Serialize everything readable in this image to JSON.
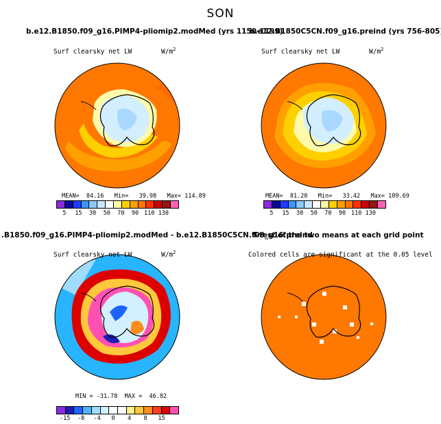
{
  "season": "SON",
  "panels": [
    {
      "title": "b.e12.B1850.f09_g16.PIMP4-pliomip2.modMed (yrs 1150-1199)",
      "subtitle": "Surf clearsky net LW",
      "units": "W/m",
      "units_exp": "2",
      "stats": "MEAN=  84.16   Min=   39.98   Max= 114.89",
      "colorbar": {
        "ticks": [
          "5",
          "15",
          "30",
          "50",
          "70",
          "90",
          "110",
          "130"
        ],
        "colors": [
          "#8c2be2",
          "#0a0a96",
          "#1e3cff",
          "#3c96ff",
          "#8cc8ff",
          "#c8e6ff",
          "#ffffff",
          "#fffaaa",
          "#ffd000",
          "#ffa000",
          "#ff7800",
          "#ff3200",
          "#c80000",
          "#961414",
          "#ff64b4"
        ]
      }
    },
    {
      "title": "b.e12.B1850C5CN.f09_g16.preind (yrs 756-805)",
      "subtitle": "Surf clearsky net LW",
      "units": "W/m",
      "units_exp": "2",
      "stats": "MEAN=  81.20   Min=   33.42   Max= 109.69",
      "colorbar": {
        "ticks": [
          "5",
          "15",
          "30",
          "50",
          "70",
          "90",
          "110",
          "130"
        ],
        "colors": [
          "#8c2be2",
          "#0a0a96",
          "#1e3cff",
          "#3c96ff",
          "#8cc8ff",
          "#c8e6ff",
          "#ffffff",
          "#fffaaa",
          "#ffd000",
          "#ffa000",
          "#ff7800",
          "#ff3200",
          "#c80000",
          "#961414",
          "#ff64b4"
        ]
      }
    },
    {
      "title": ".B1850.f09_g16.PIMP4-pliomip2.modMed - b.e12.B1850C5CN.f09_g16.preind",
      "subtitle": "Surf clearsky net LW",
      "units": "W/m",
      "units_exp": "2",
      "stats": "MIN = -31.78  MAX =  46.82",
      "colorbar": {
        "ticks": [
          "-15",
          "-8",
          "-4",
          "0",
          "4",
          "8",
          "15"
        ],
        "colors": [
          "#8c2be2",
          "#1e1eb4",
          "#1e64ff",
          "#50b4ff",
          "#a0dcff",
          "#d2f0ff",
          "#ffffff",
          "#ffffff",
          "#fff08c",
          "#ffc83c",
          "#ff8c1e",
          "#ff3c1e",
          "#dc0000",
          "#ff50b4"
        ]
      }
    },
    {
      "title": "T-test of the two means at each grid point",
      "subtitle": "Colored cells are significant at the 0.05 level"
    }
  ],
  "colors": {
    "orange": "#ff7800",
    "dark_orange": "#ff6a00",
    "light_orange": "#ffa000",
    "yellow": "#ffd000",
    "pale_yellow": "#fffaaa",
    "ice": "#d2eeff",
    "light_blue": "#a8d8ff",
    "blue": "#1e64ff",
    "cyan": "#28b4ff",
    "red": "#dc0000",
    "magenta": "#ff50b4"
  }
}
